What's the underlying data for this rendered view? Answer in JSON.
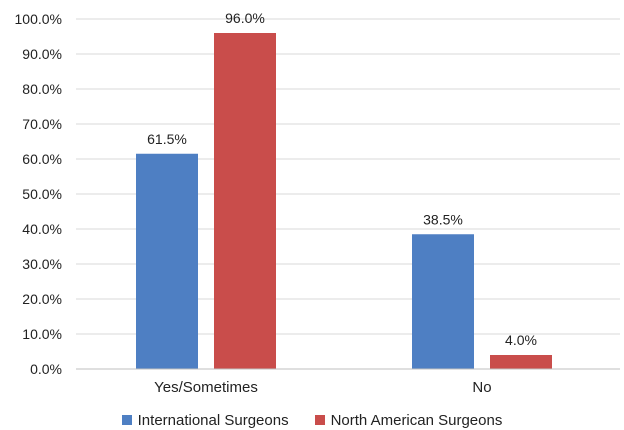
{
  "chart_data": {
    "type": "bar",
    "title": "",
    "xlabel": "",
    "ylabel": "",
    "categories": [
      "Yes/Sometimes",
      "No"
    ],
    "series": [
      {
        "name": "International Surgeons",
        "color": "#4E7FC3",
        "values": [
          61.5,
          38.5
        ],
        "labels": [
          "61.5%",
          "38.5%"
        ]
      },
      {
        "name": "North American Surgeons",
        "color": "#C94D4B",
        "values": [
          96.0,
          4.0
        ],
        "labels": [
          "96.0%",
          "4.0%"
        ]
      }
    ],
    "ylim": [
      0,
      100
    ],
    "yticks": [
      "0.0%",
      "10.0%",
      "20.0%",
      "30.0%",
      "40.0%",
      "50.0%",
      "60.0%",
      "70.0%",
      "80.0%",
      "90.0%",
      "100.0%"
    ],
    "grid": true,
    "legend_position": "bottom"
  }
}
